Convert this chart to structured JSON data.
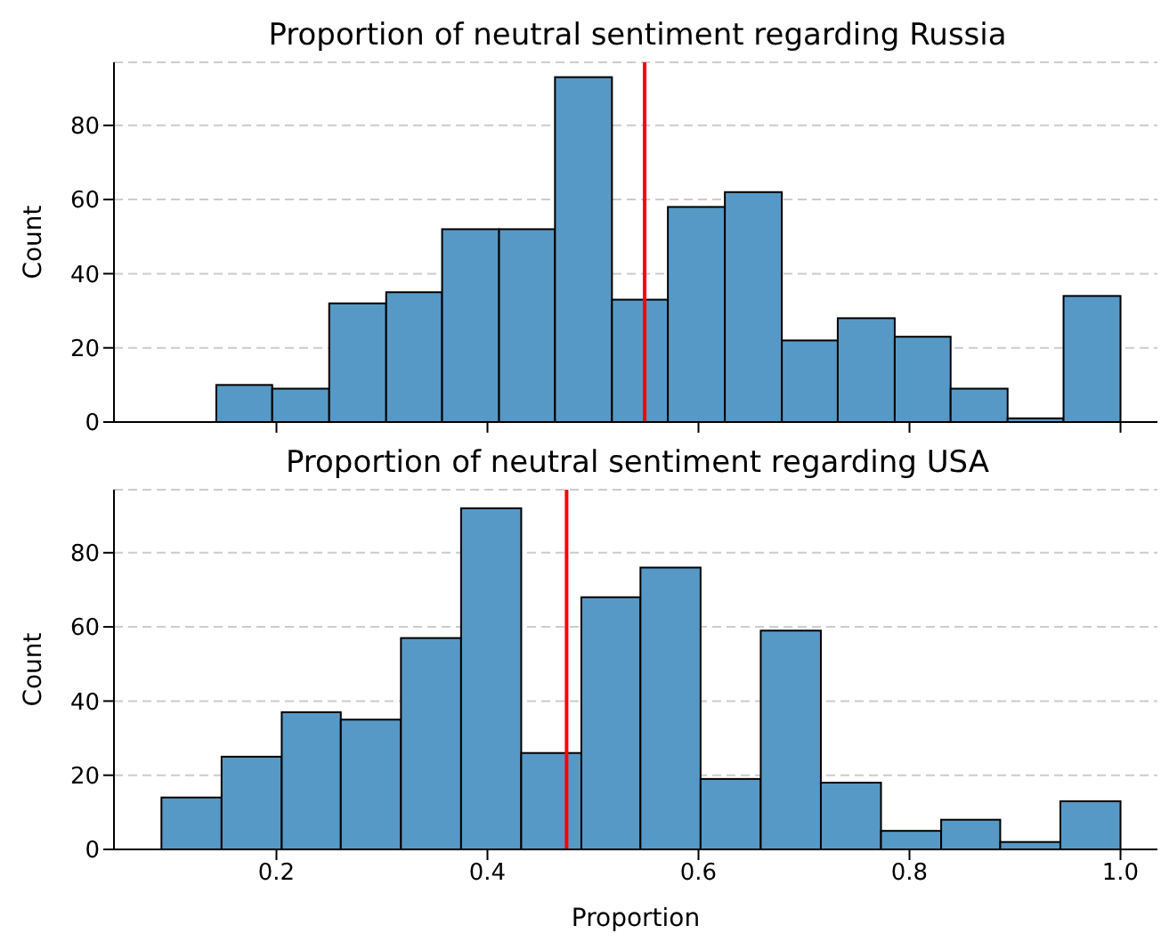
{
  "chart_data": [
    {
      "type": "histogram",
      "title": "Proportion of neutral sentiment regarding Russia",
      "ylabel": "Count",
      "color": "#5799c6",
      "bins": [
        0.143,
        0.196,
        0.25,
        0.304,
        0.357,
        0.411,
        0.464,
        0.518,
        0.571,
        0.625,
        0.679,
        0.732,
        0.786,
        0.839,
        0.893,
        0.946,
        1.0
      ],
      "values": [
        10,
        9,
        32,
        35,
        52,
        52,
        93,
        33,
        58,
        62,
        22,
        28,
        23,
        9,
        1,
        34
      ],
      "xlim": [
        0.046,
        1.035
      ],
      "xticks": [
        0.2,
        0.4,
        0.6,
        0.8,
        1
      ],
      "ylim": [
        0,
        97
      ],
      "yticks": [
        0,
        20,
        40,
        60,
        80
      ],
      "grid": "y",
      "tick_labels": "y",
      "ref_lines": [
        {
          "axis": "x",
          "value": 0.549,
          "color": "#ff0000"
        }
      ]
    },
    {
      "type": "histogram",
      "title": "Proportion of neutral sentiment regarding USA",
      "xlabel": "Proportion",
      "ylabel": "Count",
      "color": "#5799c6",
      "bins": [
        0.091,
        0.148,
        0.205,
        0.261,
        0.318,
        0.375,
        0.432,
        0.489,
        0.545,
        0.602,
        0.659,
        0.716,
        0.773,
        0.83,
        0.886,
        0.943,
        1.0
      ],
      "values": [
        14,
        25,
        37,
        35,
        57,
        92,
        26,
        68,
        76,
        19,
        59,
        18,
        5,
        8,
        2,
        13
      ],
      "xlim": [
        0.046,
        1.035
      ],
      "xticks": [
        0.2,
        0.4,
        0.6,
        0.8,
        {
          "value": 1,
          "label": "1.0"
        }
      ],
      "ylim": [
        0,
        97
      ],
      "yticks": [
        0,
        20,
        40,
        60,
        80
      ],
      "grid": "y",
      "ref_lines": [
        {
          "axis": "x",
          "value": 0.475,
          "color": "#ff0000"
        }
      ]
    }
  ]
}
